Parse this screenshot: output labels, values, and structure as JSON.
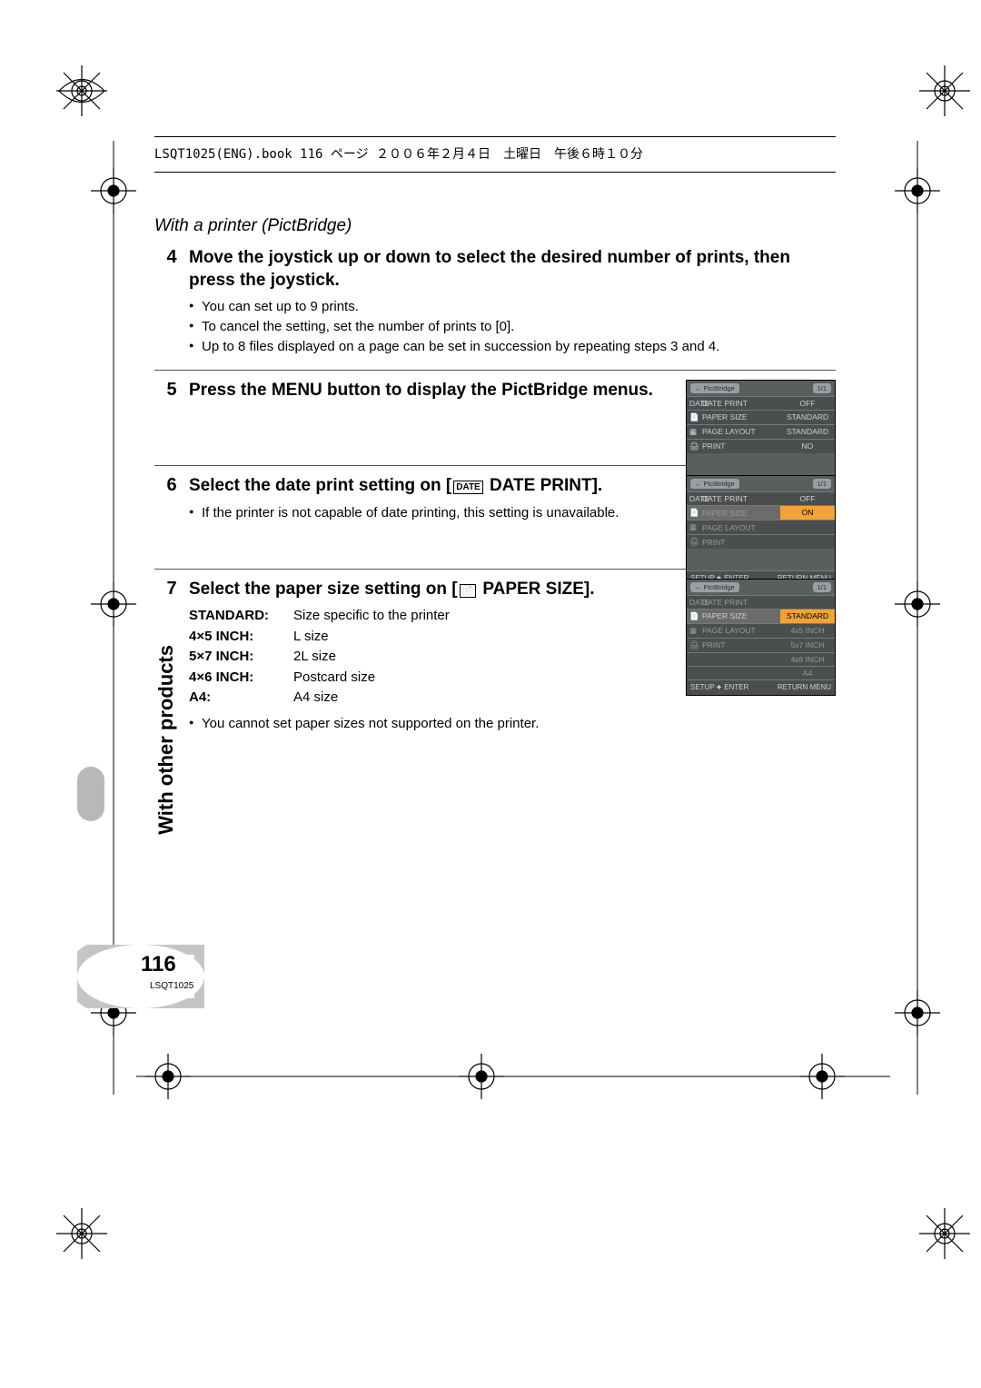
{
  "header_line": "LSQT1025(ENG).book  116 ページ  ２００６年２月４日　土曜日　午後６時１０分",
  "section_title": "With a printer (PictBridge)",
  "steps": {
    "s4": {
      "num": "4",
      "heading": "Move the joystick up or down to select the desired number of prints, then press the joystick.",
      "bullets": [
        "You can set up to 9 prints.",
        "To cancel the setting, set the number of prints to [0].",
        "Up to 8 files displayed on a page can be set in succession by repeating steps 3 and 4."
      ]
    },
    "s5": {
      "num": "5",
      "heading": "Press the MENU button to display the PictBridge menus."
    },
    "s6": {
      "num": "6",
      "heading_pre": "Select the date print setting on [",
      "heading_icon": "DATE",
      "heading_post": " DATE PRINT].",
      "bullets": [
        "If the printer is not capable of date printing, this setting is unavailable."
      ]
    },
    "s7": {
      "num": "7",
      "heading_pre": "Select the paper size setting on [",
      "heading_icon": "📄",
      "heading_post": " PAPER SIZE].",
      "paper_table": [
        {
          "k": "STANDARD:",
          "v": "Size specific to the printer"
        },
        {
          "k": "4×5 INCH:",
          "v": "L size"
        },
        {
          "k": "5×7 INCH:",
          "v": "2L size"
        },
        {
          "k": "4×6 INCH:",
          "v": "Postcard size"
        },
        {
          "k": "A4:",
          "v": "A4 size"
        }
      ],
      "bullets": [
        "You cannot set paper sizes not supported on the printer."
      ]
    }
  },
  "menu5": {
    "hdr_left": "← PictBridge",
    "hdr_right": "1/1",
    "rows": [
      {
        "l": "DATE PRINT",
        "r": "OFF",
        "icon": "DATE"
      },
      {
        "l": "PAPER SIZE",
        "r": "STANDARD",
        "icon": "📄"
      },
      {
        "l": "PAGE LAYOUT",
        "r": "STANDARD",
        "icon": "▦"
      },
      {
        "l": "PRINT",
        "r": "NO",
        "icon": "🖨"
      }
    ],
    "ftr_left": "SETUP ⯌ ENTER",
    "ftr_right": "RETURN MENU"
  },
  "menu6": {
    "hdr_left": "← PictBridge",
    "hdr_right": "1/1",
    "rows": [
      {
        "l": "DATE PRINT",
        "r": "OFF",
        "icon": "DATE",
        "hl": false
      },
      {
        "l": "PAPER SIZE",
        "r": "ON",
        "icon": "📄",
        "hl": true,
        "dim": true
      },
      {
        "l": "PAGE LAYOUT",
        "r": "",
        "icon": "▦",
        "dim": true
      },
      {
        "l": "PRINT",
        "r": "",
        "icon": "🖨",
        "dim": true
      }
    ],
    "ftr_left": "SETUP ⯌ ENTER",
    "ftr_right": "RETURN MENU"
  },
  "menu7": {
    "hdr_left": "← PictBridge",
    "hdr_right": "1/1",
    "rows": [
      {
        "l": "DATE PRINT",
        "r": "",
        "icon": "DATE",
        "dim": true
      },
      {
        "l": "PAPER SIZE",
        "r": "STANDARD",
        "icon": "📄",
        "hl": true
      },
      {
        "l": "PAGE LAYOUT",
        "r": "4x5 INCH",
        "icon": "▦",
        "dim": true
      },
      {
        "l": "PRINT",
        "r": "5x7 INCH",
        "icon": "🖨",
        "dim": true
      },
      {
        "l": "",
        "r": "4x6 INCH",
        "dim": true
      },
      {
        "l": "",
        "r": "A4",
        "dim": true
      }
    ],
    "ftr_left": "SETUP ⯌ ENTER",
    "ftr_right": "RETURN MENU"
  },
  "side_tab": "With other products",
  "page_number": "116",
  "doc_code": "LSQT1025"
}
